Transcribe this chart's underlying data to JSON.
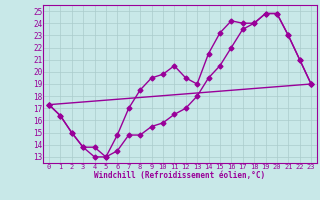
{
  "xlabel": "Windchill (Refroidissement éolien,°C)",
  "background_color": "#c8e8e8",
  "line_color": "#990099",
  "spine_color": "#8888aa",
  "grid_color": "#aacccc",
  "marker": "D",
  "markersize": 2.5,
  "linewidth": 1.0,
  "xlim": [
    -0.5,
    23.5
  ],
  "ylim": [
    12.5,
    25.5
  ],
  "xticks": [
    0,
    1,
    2,
    3,
    4,
    5,
    6,
    7,
    8,
    9,
    10,
    11,
    12,
    13,
    14,
    15,
    16,
    17,
    18,
    19,
    20,
    21,
    22,
    23
  ],
  "yticks": [
    13,
    14,
    15,
    16,
    17,
    18,
    19,
    20,
    21,
    22,
    23,
    24,
    25
  ],
  "series": [
    {
      "x": [
        0,
        1,
        2,
        3,
        4,
        5,
        6,
        7,
        8,
        9,
        10,
        11,
        12,
        13,
        14,
        15,
        16,
        17,
        18,
        19,
        20,
        21,
        22,
        23
      ],
      "y": [
        17.3,
        16.4,
        15.0,
        13.8,
        13.0,
        13.0,
        14.8,
        17.0,
        18.5,
        19.5,
        19.8,
        20.5,
        19.5,
        19.0,
        21.5,
        23.2,
        24.2,
        24.0,
        24.0,
        24.8,
        24.8,
        23.0,
        21.0,
        19.0
      ]
    },
    {
      "x": [
        0,
        1,
        2,
        3,
        4,
        5,
        6,
        7,
        8,
        9,
        10,
        11,
        12,
        13,
        14,
        15,
        16,
        17,
        18,
        19,
        20,
        21,
        22,
        23
      ],
      "y": [
        17.3,
        16.4,
        15.0,
        13.8,
        13.8,
        13.0,
        13.5,
        14.8,
        14.8,
        15.5,
        15.8,
        16.5,
        17.0,
        18.0,
        19.5,
        20.5,
        22.0,
        23.5,
        24.0,
        24.8,
        24.8,
        23.0,
        21.0,
        19.0
      ]
    },
    {
      "x": [
        0,
        23
      ],
      "y": [
        17.3,
        19.0
      ]
    }
  ]
}
